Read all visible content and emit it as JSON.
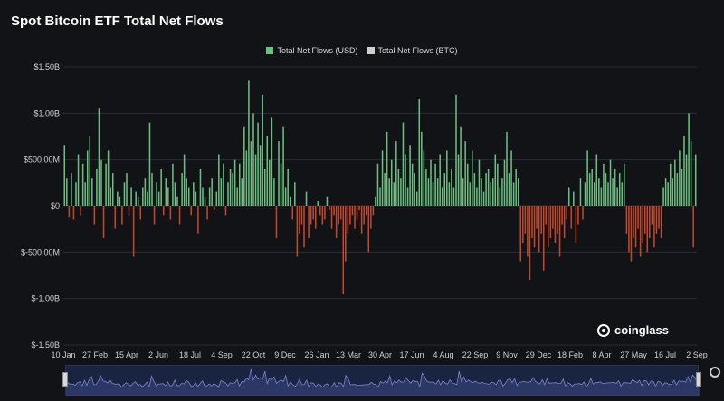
{
  "title": "Spot Bitcoin ETF Total Net Flows",
  "legend": [
    {
      "label": "Total Net Flows (USD)",
      "color": "#6dbf80"
    },
    {
      "label": "Total Net Flows (BTC)",
      "color": "#cfcfcf"
    }
  ],
  "brand": "coinglass",
  "colors": {
    "positive": "#6dbf80",
    "negative": "#c4482b",
    "navigator_line": "#7b86c9"
  },
  "chart_data": {
    "type": "bar",
    "ylim": [
      -1.5,
      1.5
    ],
    "yticks": [
      {
        "value": 1.5,
        "label": "$1.50B"
      },
      {
        "value": 1.0,
        "label": "$1.00B"
      },
      {
        "value": 0.5,
        "label": "$500.00M"
      },
      {
        "value": 0,
        "label": "$0"
      },
      {
        "value": -0.5,
        "label": "$-500.00M"
      },
      {
        "value": -1.0,
        "label": "$-1.00B"
      },
      {
        "value": -1.5,
        "label": "$-1.50B"
      }
    ],
    "xticks": [
      "10 Jan",
      "27 Feb",
      "15 Apr",
      "2 Jun",
      "18 Jul",
      "4 Sep",
      "22 Oct",
      "9 Dec",
      "26 Jan",
      "13 Mar",
      "30 Apr",
      "17 Jun",
      "4 Aug",
      "22 Sep",
      "9 Nov",
      "29 Dec",
      "18 Feb",
      "8 Apr",
      "27 May",
      "16 Jul",
      "2 Sep"
    ],
    "series": [
      {
        "name": "Total Net Flows (USD)",
        "unit": "B USD",
        "values": [
          0.65,
          0.3,
          -0.12,
          0.35,
          -0.15,
          0.25,
          0.55,
          -0.1,
          0.45,
          0.25,
          0.6,
          0.75,
          0.3,
          -0.2,
          0.4,
          1.05,
          0.5,
          -0.35,
          0.45,
          0.6,
          0.2,
          0.35,
          -0.25,
          0.15,
          0.1,
          -0.2,
          0.25,
          0.35,
          -0.1,
          0.2,
          -0.55,
          0.15,
          0.1,
          -0.15,
          0.2,
          0.3,
          0.15,
          0.9,
          0.35,
          -0.2,
          0.25,
          0.15,
          0.4,
          -0.1,
          0.3,
          0.2,
          -0.15,
          0.45,
          0.25,
          0.1,
          -0.2,
          0.35,
          0.55,
          0.3,
          0.2,
          -0.1,
          0.25,
          0.15,
          -0.3,
          0.4,
          0.2,
          0.1,
          -0.15,
          0.2,
          0.3,
          -0.05,
          0.15,
          0.55,
          0.3,
          0.45,
          -0.1,
          0.25,
          0.4,
          0.35,
          0.5,
          0.2,
          0.45,
          0.3,
          0.85,
          0.6,
          1.35,
          0.7,
          1.0,
          0.55,
          0.9,
          0.65,
          1.2,
          0.4,
          0.75,
          0.5,
          0.95,
          0.3,
          -0.35,
          0.7,
          0.45,
          0.85,
          0.2,
          0.4,
          0.1,
          -0.15,
          0.25,
          -0.55,
          -0.3,
          -0.2,
          -0.45,
          0.15,
          -0.35,
          -0.2,
          -0.15,
          -0.25,
          0.05,
          -0.1,
          -0.2,
          -0.15,
          0.1,
          -0.05,
          -0.25,
          -0.1,
          -0.35,
          -0.2,
          -0.15,
          -0.95,
          -0.6,
          -0.3,
          -0.2,
          -0.1,
          -0.25,
          -0.15,
          -0.05,
          -0.3,
          -0.2,
          -0.1,
          -0.5,
          -0.25,
          -0.1,
          0.1,
          0.45,
          0.2,
          0.6,
          0.35,
          0.8,
          0.3,
          0.5,
          0.25,
          0.7,
          0.4,
          0.3,
          0.9,
          0.55,
          0.2,
          0.65,
          0.45,
          0.35,
          0.15,
          1.15,
          0.8,
          0.6,
          0.4,
          0.3,
          0.5,
          0.25,
          0.45,
          0.3,
          0.55,
          0.2,
          0.35,
          0.6,
          0.25,
          0.4,
          0.2,
          1.2,
          0.55,
          0.85,
          0.3,
          0.7,
          0.45,
          0.25,
          0.6,
          0.35,
          0.2,
          0.5,
          0.3,
          0.15,
          0.35,
          0.4,
          0.25,
          0.3,
          0.55,
          0.45,
          0.2,
          0.3,
          0.5,
          0.8,
          0.35,
          0.6,
          0.25,
          0.4,
          0.3,
          -0.6,
          -0.4,
          -0.3,
          -0.55,
          -0.8,
          -0.35,
          -0.45,
          -0.25,
          -0.5,
          -0.3,
          -0.7,
          -0.2,
          -0.45,
          -0.35,
          -0.25,
          -0.4,
          -0.3,
          -0.55,
          -0.2,
          -0.35,
          -0.15,
          0.2,
          -0.25,
          0.15,
          -0.4,
          -0.2,
          0.3,
          -0.15,
          0.25,
          0.6,
          0.35,
          0.4,
          0.25,
          0.55,
          0.3,
          0.2,
          0.45,
          0.35,
          0.25,
          0.5,
          0.3,
          0.4,
          0.2,
          0.35,
          0.25,
          0.45,
          -0.3,
          -0.5,
          -0.6,
          -0.35,
          -0.45,
          -0.25,
          -0.55,
          -0.4,
          -0.3,
          -0.5,
          -0.35,
          -0.2,
          -0.45,
          -0.3,
          -0.25,
          -0.35,
          0.2,
          0.3,
          0.25,
          0.45,
          0.3,
          0.5,
          0.35,
          0.6,
          0.4,
          0.75,
          0.55,
          1.0,
          0.7,
          -0.45,
          0.55
        ]
      }
    ]
  }
}
